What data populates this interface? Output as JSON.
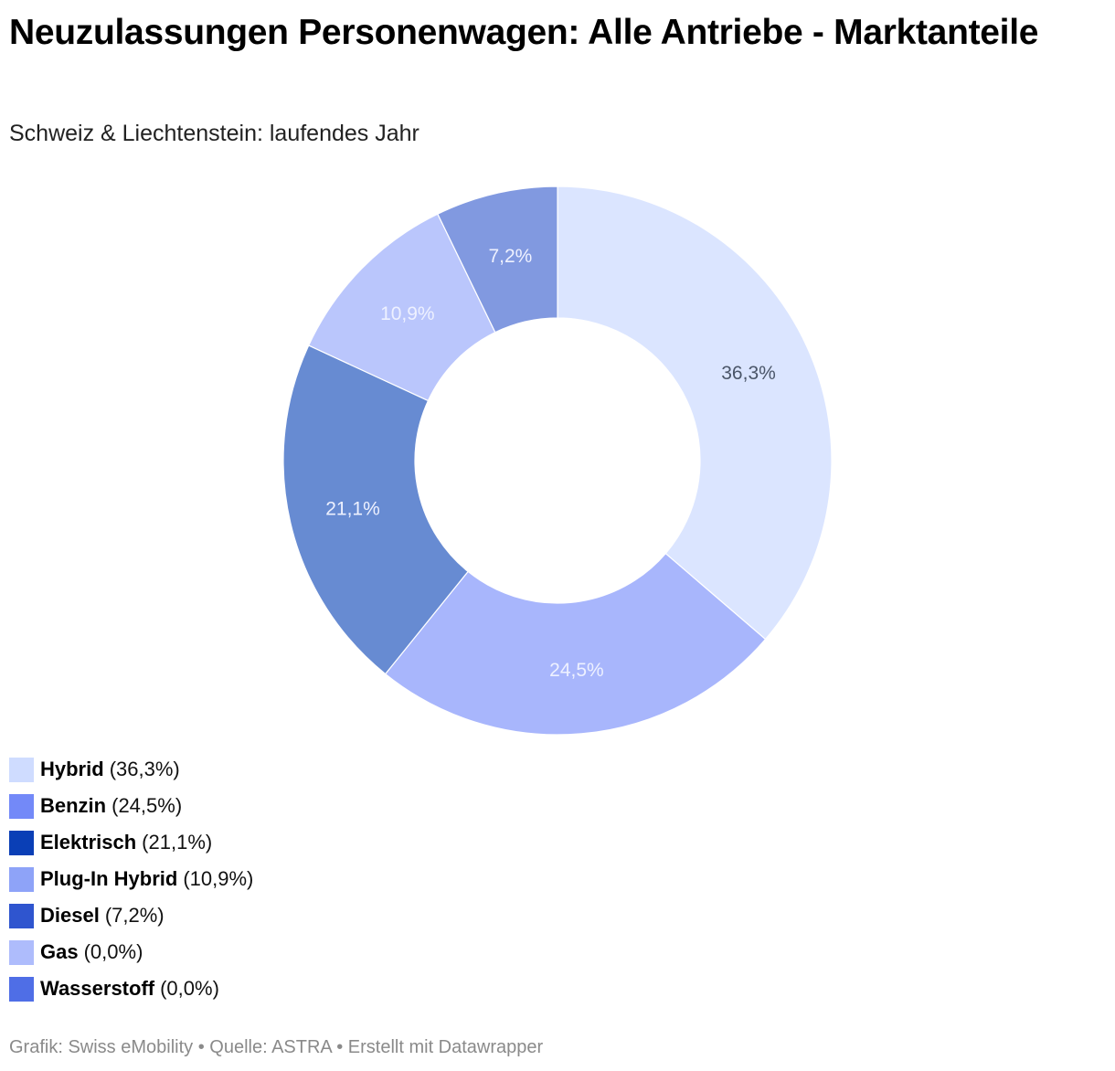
{
  "header": {
    "title": "Neuzulassungen Personenwagen: Alle Antriebe - Marktanteile",
    "subtitle": "Schweiz & Liechtenstein: laufendes Jahr"
  },
  "chart_data": {
    "type": "pie",
    "variant": "donut",
    "title": "Neuzulassungen Personenwagen: Alle Antriebe - Marktanteile",
    "subtitle": "Schweiz & Liechtenstein: laufendes Jahr",
    "unit": "%",
    "categories": [
      "Hybrid",
      "Benzin",
      "Elektrisch",
      "Plug-In Hybrid",
      "Diesel",
      "Gas",
      "Wasserstoff"
    ],
    "values": [
      36.3,
      24.5,
      21.1,
      10.9,
      7.2,
      0.0,
      0.0
    ],
    "slice_labels": [
      "36,3%",
      "24,5%",
      "21,1%",
      "10,9%",
      "7,2%",
      "",
      ""
    ],
    "legend_values": [
      "(36,3%)",
      "(24,5%)",
      "(21,1%)",
      "(10,9%)",
      "(7,2%)",
      "(0,0%)",
      "(0,0%)"
    ],
    "legend_colors": [
      "#cfdcff",
      "#7389f8",
      "#0a3fb6",
      "#8ea3f8",
      "#2f55cf",
      "#aebcfc",
      "#4f6ee6"
    ],
    "slice_colors": [
      "#dbe5ff",
      "#a8b6fc",
      "#678bd2",
      "#bac6fc",
      "#8199e0",
      "#aebcfc",
      "#4f6ee6"
    ],
    "label_colors": [
      "#4a5568",
      "#eef1ff",
      "#eef1ff",
      "#eef1ff",
      "#eef1ff",
      "#eef1ff",
      "#eef1ff"
    ],
    "legend_position": "bottom-left"
  },
  "footer": {
    "credit": "Grafik: Swiss eMobility • Quelle: ASTRA • Erstellt mit Datawrapper"
  }
}
